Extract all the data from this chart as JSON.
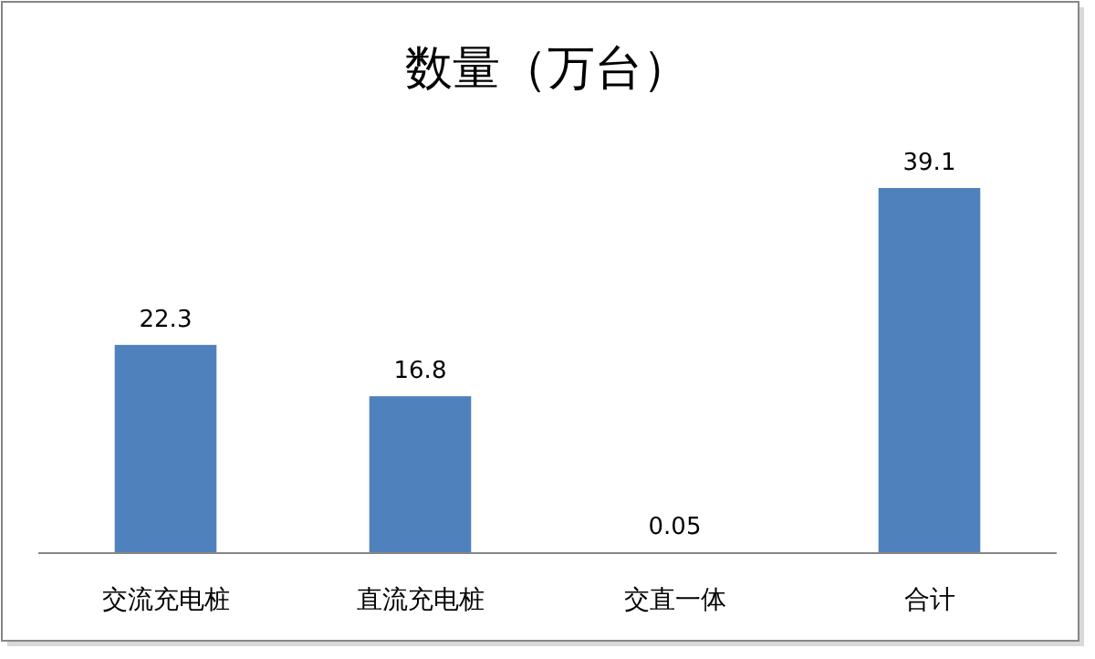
{
  "chart_data": {
    "type": "bar",
    "title": "数量（万台）",
    "categories": [
      "交流充电桩",
      "直流充电桩",
      "交直一体",
      "合计"
    ],
    "values": [
      22.3,
      16.8,
      0.05,
      39.1
    ],
    "color": "#4f81bd",
    "data_labels": true
  }
}
